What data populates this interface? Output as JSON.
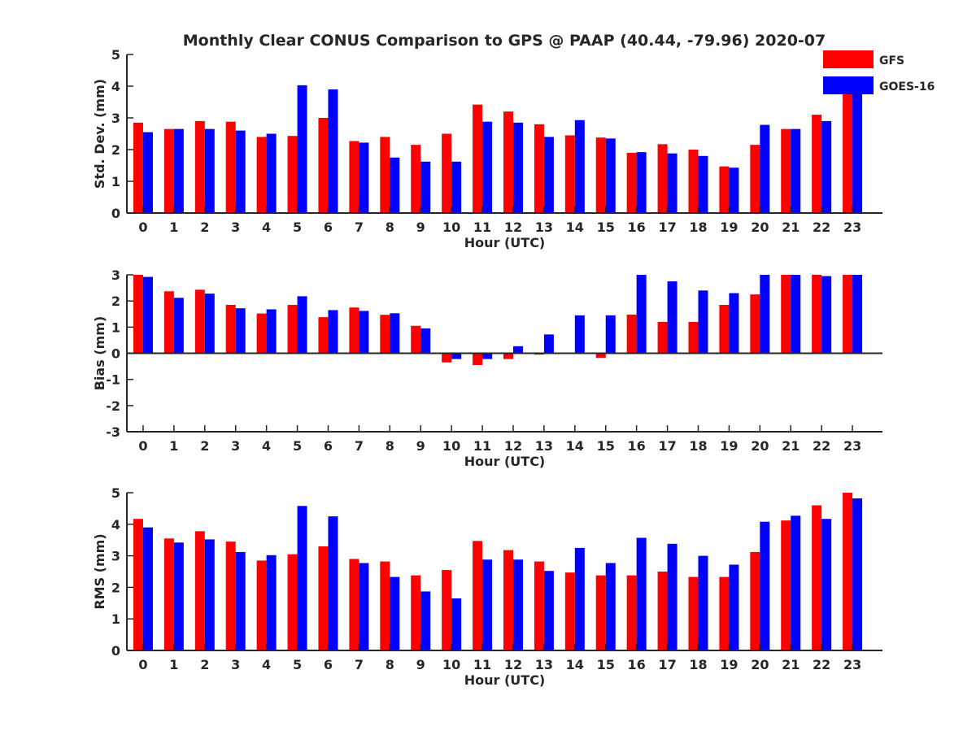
{
  "title": "Monthly Clear CONUS Comparison to GPS @ PAAP (40.44, -79.96) 2020-07",
  "colors": {
    "GFS": "#ff0000",
    "GOES-16": "#0000ff",
    "axis": "#262626"
  },
  "legend": {
    "placement": "top-right",
    "entries": [
      "GFS",
      "GOES-16"
    ]
  },
  "chart_data": [
    {
      "type": "bar",
      "xlabel": "Hour (UTC)",
      "ylabel": "Std. Dev. (mm)",
      "ylim": [
        0,
        5
      ],
      "yticks": [
        0,
        1,
        2,
        3,
        4,
        5
      ],
      "categories": [
        "0",
        "1",
        "2",
        "3",
        "4",
        "5",
        "6",
        "7",
        "8",
        "9",
        "10",
        "11",
        "12",
        "13",
        "14",
        "15",
        "16",
        "17",
        "18",
        "19",
        "20",
        "21",
        "22",
        "23"
      ],
      "series": [
        {
          "name": "GFS",
          "values": [
            2.85,
            2.65,
            2.9,
            2.88,
            2.4,
            2.43,
            3.0,
            2.27,
            2.4,
            2.15,
            2.5,
            3.42,
            3.2,
            2.8,
            2.45,
            2.38,
            1.9,
            2.17,
            2.0,
            1.47,
            2.15,
            2.65,
            3.1,
            3.8
          ]
        },
        {
          "name": "GOES-16",
          "values": [
            2.55,
            2.65,
            2.65,
            2.6,
            2.5,
            4.03,
            3.9,
            2.22,
            1.75,
            1.62,
            1.62,
            2.88,
            2.85,
            2.4,
            2.93,
            2.35,
            1.92,
            1.88,
            1.8,
            1.43,
            2.78,
            2.65,
            2.9,
            4.0
          ]
        }
      ]
    },
    {
      "type": "bar",
      "xlabel": "Hour (UTC)",
      "ylabel": "Bias (mm)",
      "ylim": [
        -3,
        3
      ],
      "yticks": [
        -3,
        -2,
        -1,
        0,
        1,
        2,
        3
      ],
      "categories": [
        "0",
        "1",
        "2",
        "3",
        "4",
        "5",
        "6",
        "7",
        "8",
        "9",
        "10",
        "11",
        "12",
        "13",
        "14",
        "15",
        "16",
        "17",
        "18",
        "19",
        "20",
        "21",
        "22",
        "23"
      ],
      "series": [
        {
          "name": "GFS",
          "values": [
            3.0,
            2.37,
            2.43,
            1.85,
            1.52,
            1.85,
            1.38,
            1.75,
            1.47,
            1.05,
            -0.35,
            -0.45,
            -0.22,
            -0.05,
            0.0,
            -0.18,
            1.48,
            1.2,
            1.2,
            1.85,
            2.25,
            3.0,
            3.0,
            3.0
          ]
        },
        {
          "name": "GOES-16",
          "values": [
            2.92,
            2.12,
            2.28,
            1.72,
            1.68,
            2.18,
            1.65,
            1.62,
            1.53,
            0.95,
            -0.22,
            -0.22,
            0.27,
            0.72,
            1.45,
            1.45,
            3.0,
            2.75,
            2.4,
            2.3,
            3.0,
            3.0,
            2.95,
            3.0
          ]
        }
      ]
    },
    {
      "type": "bar",
      "xlabel": "Hour (UTC)",
      "ylabel": "RMS (mm)",
      "ylim": [
        0,
        5
      ],
      "yticks": [
        0,
        1,
        2,
        3,
        4,
        5
      ],
      "categories": [
        "0",
        "1",
        "2",
        "3",
        "4",
        "5",
        "6",
        "7",
        "8",
        "9",
        "10",
        "11",
        "12",
        "13",
        "14",
        "15",
        "16",
        "17",
        "18",
        "19",
        "20",
        "21",
        "22",
        "23"
      ],
      "series": [
        {
          "name": "GFS",
          "values": [
            4.17,
            3.55,
            3.78,
            3.45,
            2.85,
            3.05,
            3.3,
            2.9,
            2.82,
            2.38,
            2.55,
            3.47,
            3.18,
            2.82,
            2.47,
            2.38,
            2.38,
            2.5,
            2.33,
            2.33,
            3.12,
            4.12,
            4.6,
            5.0
          ]
        },
        {
          "name": "GOES-16",
          "values": [
            3.9,
            3.42,
            3.52,
            3.12,
            3.02,
            4.58,
            4.25,
            2.77,
            2.33,
            1.87,
            1.65,
            2.88,
            2.88,
            2.52,
            3.25,
            2.77,
            3.57,
            3.38,
            3.0,
            2.72,
            4.08,
            4.27,
            4.17,
            4.82
          ]
        }
      ]
    }
  ]
}
